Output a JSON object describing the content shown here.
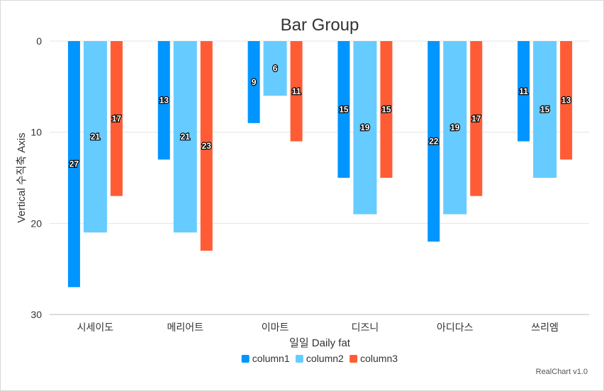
{
  "chart_data": {
    "type": "bar",
    "title": "Bar Group",
    "xlabel": "일일 Daily fat",
    "ylabel": "Vertical 수직축 Axis",
    "categories": [
      "시세이도",
      "메리어트",
      "이마트",
      "디즈니",
      "아디다스",
      "쓰리엠"
    ],
    "series": [
      {
        "name": "column1",
        "color": "#0095ff",
        "values": [
          27,
          13,
          9,
          15,
          22,
          11
        ]
      },
      {
        "name": "column2",
        "color": "#66ccff",
        "values": [
          21,
          21,
          6,
          19,
          19,
          15
        ]
      },
      {
        "name": "column3",
        "color": "#ff5c35",
        "values": [
          17,
          23,
          11,
          15,
          17,
          13
        ]
      }
    ],
    "ylim": [
      0,
      30
    ],
    "yticks": [
      0,
      10,
      20,
      30
    ],
    "y_reversed": true,
    "grid": true,
    "legend_position": "bottom",
    "credit": "RealChart v1.0"
  }
}
